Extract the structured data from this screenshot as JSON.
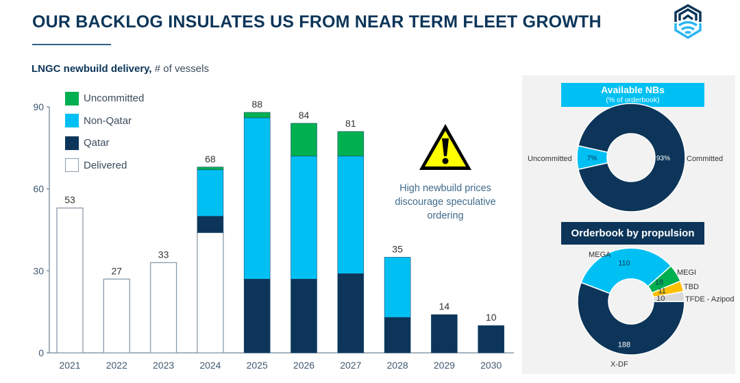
{
  "header": {
    "title": "OUR BACKLOG INSULATES US FROM NEAR TERM FLEET GROWTH",
    "logo_icon": "hexagon-wave-logo-icon"
  },
  "subtitle": {
    "bold": "LNGC newbuild delivery,",
    "normal": " # of vessels"
  },
  "colors": {
    "uncommitted": "#00b050",
    "non_qatar": "#00c0f3",
    "qatar": "#0c3559",
    "delivered": "#ffffff",
    "axis": "#6f8596",
    "tbd": "#ffc000",
    "tfde": "#d9d9d9"
  },
  "warning": {
    "icon": "warning-triangle-icon",
    "text_lines": [
      "High newbuild prices",
      "discourage speculative",
      "ordering"
    ]
  },
  "chart_data": [
    {
      "type": "bar",
      "stacked": true,
      "title": "LNGC newbuild delivery, # of vessels",
      "xlabel": "",
      "ylabel": "",
      "ylim": [
        0,
        90
      ],
      "yticks": [
        0,
        30,
        60,
        90
      ],
      "grid": false,
      "legend_position": "top-left",
      "categories": [
        "2021",
        "2022",
        "2023",
        "2024",
        "2025",
        "2026",
        "2027",
        "2028",
        "2029",
        "2030"
      ],
      "series": [
        {
          "name": "Delivered",
          "key": "delivered",
          "values": [
            53,
            27,
            33,
            44,
            0,
            0,
            0,
            0,
            0,
            0
          ]
        },
        {
          "name": "Qatar",
          "key": "qatar",
          "values": [
            0,
            0,
            0,
            6,
            27,
            27,
            29,
            13,
            14,
            10
          ]
        },
        {
          "name": "Non-Qatar",
          "key": "non_qatar",
          "values": [
            0,
            0,
            0,
            17,
            59,
            45,
            43,
            22,
            0,
            0
          ]
        },
        {
          "name": "Uncommitted",
          "key": "uncommitted",
          "values": [
            0,
            0,
            0,
            1,
            2,
            12,
            9,
            0,
            0,
            0
          ]
        }
      ],
      "legend_order": [
        "Uncommitted",
        "Non-Qatar",
        "Qatar",
        "Delivered"
      ],
      "totals": [
        53,
        27,
        33,
        68,
        88,
        84,
        81,
        35,
        14,
        10
      ]
    },
    {
      "type": "pie",
      "donut": true,
      "title": "Available NBs",
      "subtitle": "(% of orderbook)",
      "slices": [
        {
          "label": "Committed",
          "value": 93,
          "display": "93%",
          "color": "#0c3559"
        },
        {
          "label": "Uncommitted",
          "value": 7,
          "display": "7%",
          "color": "#00c0f3"
        }
      ]
    },
    {
      "type": "pie",
      "donut": true,
      "title": "Orderbook by propulsion",
      "slices": [
        {
          "label": "X-DF",
          "value": 188,
          "display": "188",
          "color": "#0c3559"
        },
        {
          "label": "MEGA",
          "value": 110,
          "display": "110",
          "color": "#00c0f3"
        },
        {
          "label": "MEGI",
          "value": 18,
          "display": "18",
          "color": "#00b050"
        },
        {
          "label": "TBD",
          "value": 11,
          "display": "11",
          "color": "#ffc000"
        },
        {
          "label": "TFDE - Azipod",
          "value": 10,
          "display": "10",
          "color": "#d9d9d9"
        }
      ]
    }
  ]
}
